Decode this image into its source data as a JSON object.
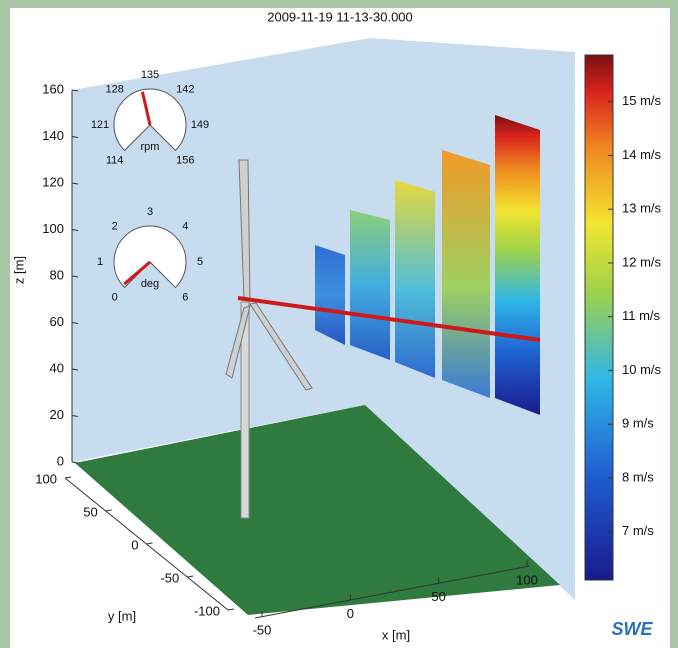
{
  "chart_data": {
    "type": "scene3d",
    "title": "2009-11-19 11-13-30.000",
    "xlabel": "x [m]",
    "xlim": [
      -50,
      100
    ],
    "xticks": [
      -50,
      0,
      50,
      100
    ],
    "ylabel": "y [m]",
    "ylim": [
      -100,
      100
    ],
    "yticks": [
      100,
      50,
      0,
      -50,
      -100
    ],
    "zlabel": "z [m]",
    "zlim": [
      0,
      160
    ],
    "zticks": [
      0,
      20,
      40,
      60,
      80,
      100,
      120,
      140,
      160
    ],
    "colorbar": {
      "lim": [
        6.1,
        15.87
      ],
      "ticks": [
        {
          "value": 7,
          "label": "7 m/s"
        },
        {
          "value": 8,
          "label": "8 m/s"
        },
        {
          "value": 9,
          "label": "9 m/s"
        },
        {
          "value": 10,
          "label": "10 m/s"
        },
        {
          "value": 11,
          "label": "11 m/s"
        },
        {
          "value": 12,
          "label": "12 m/s"
        },
        {
          "value": 13,
          "label": "13 m/s"
        },
        {
          "value": 14,
          "label": "14 m/s"
        },
        {
          "value": 15,
          "label": "15 m/s"
        }
      ]
    },
    "gauges": [
      {
        "label": "rpm",
        "lim": [
          114,
          156
        ],
        "ticks": [
          114,
          121,
          128,
          135,
          142,
          149,
          156
        ],
        "value": 133
      },
      {
        "label": "deg",
        "lim": [
          0,
          6
        ],
        "ticks": [
          0,
          1,
          2,
          3,
          4,
          5,
          6
        ],
        "value": 0.1
      }
    ],
    "logo": "SWE"
  }
}
